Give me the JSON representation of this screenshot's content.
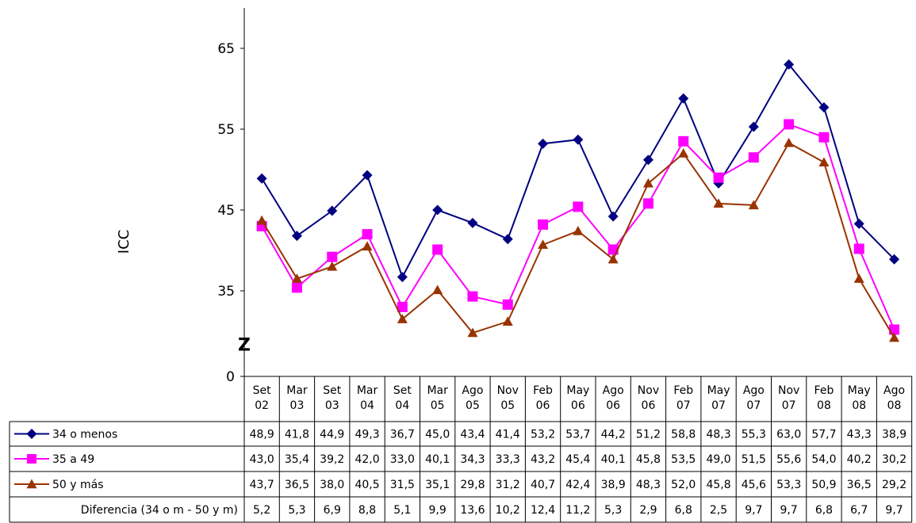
{
  "chart_data": {
    "type": "line",
    "ylabel": "ICC",
    "yticks": [
      "0",
      "35",
      "45",
      "55",
      "65"
    ],
    "axis_break_marker": "Z",
    "ylim_display": [
      30,
      70
    ],
    "categories": [
      [
        "Set",
        "02"
      ],
      [
        "Mar",
        "03"
      ],
      [
        "Set",
        "03"
      ],
      [
        "Mar",
        "04"
      ],
      [
        "Set",
        "04"
      ],
      [
        "Mar",
        "05"
      ],
      [
        "Ago",
        "05"
      ],
      [
        "Nov",
        "05"
      ],
      [
        "Feb",
        "06"
      ],
      [
        "May",
        "06"
      ],
      [
        "Ago",
        "06"
      ],
      [
        "Nov",
        "06"
      ],
      [
        "Feb",
        "07"
      ],
      [
        "May",
        "07"
      ],
      [
        "Ago",
        "07"
      ],
      [
        "Nov",
        "07"
      ],
      [
        "Feb",
        "08"
      ],
      [
        "May",
        "08"
      ],
      [
        "Ago",
        "08"
      ]
    ],
    "series": [
      {
        "name": "34 o menos",
        "color": "#000080",
        "marker": "diamond",
        "values": [
          48.9,
          41.8,
          44.9,
          49.3,
          36.7,
          45.0,
          43.4,
          41.4,
          53.2,
          53.7,
          44.2,
          51.2,
          58.8,
          48.3,
          55.3,
          63.0,
          57.7,
          43.3,
          38.9
        ],
        "labels": [
          "48,9",
          "41,8",
          "44,9",
          "49,3",
          "36,7",
          "45,0",
          "43,4",
          "41,4",
          "53,2",
          "53,7",
          "44,2",
          "51,2",
          "58,8",
          "48,3",
          "55,3",
          "63,0",
          "57,7",
          "43,3",
          "38,9"
        ]
      },
      {
        "name": "35 a 49",
        "color": "#ff00ff",
        "marker": "square",
        "values": [
          43.0,
          35.4,
          39.2,
          42.0,
          33.0,
          40.1,
          34.3,
          33.3,
          43.2,
          45.4,
          40.1,
          45.8,
          53.5,
          49.0,
          51.5,
          55.6,
          54.0,
          40.2,
          30.2
        ],
        "labels": [
          "43,0",
          "35,4",
          "39,2",
          "42,0",
          "33,0",
          "40,1",
          "34,3",
          "33,3",
          "43,2",
          "45,4",
          "40,1",
          "45,8",
          "53,5",
          "49,0",
          "51,5",
          "55,6",
          "54,0",
          "40,2",
          "30,2"
        ]
      },
      {
        "name": "50 y más",
        "color": "#993300",
        "marker": "triangle",
        "values": [
          43.7,
          36.5,
          38.0,
          40.5,
          31.5,
          35.1,
          29.8,
          31.2,
          40.7,
          42.4,
          38.9,
          48.3,
          52.0,
          45.8,
          45.6,
          53.3,
          50.9,
          36.5,
          29.2
        ],
        "labels": [
          "43,7",
          "36,5",
          "38,0",
          "40,5",
          "31,5",
          "35,1",
          "29,8",
          "31,2",
          "40,7",
          "42,4",
          "38,9",
          "48,3",
          "52,0",
          "45,8",
          "45,6",
          "53,3",
          "50,9",
          "36,5",
          "29,2"
        ]
      }
    ],
    "table_extra_row": {
      "name": "Diferencia (34 o m - 50 y m)",
      "labels": [
        "5,2",
        "5,3",
        "6,9",
        "8,8",
        "5,1",
        "9,9",
        "13,6",
        "10,2",
        "12,4",
        "11,2",
        "5,3",
        "2,9",
        "6,8",
        "2,5",
        "9,7",
        "9,7",
        "6,8",
        "6,7",
        "9,7"
      ]
    },
    "grid": false,
    "legend": "data-table"
  }
}
